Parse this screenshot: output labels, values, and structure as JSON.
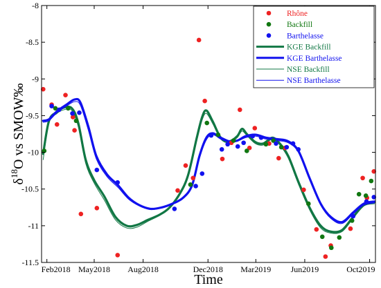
{
  "chart_data": {
    "type": "scatter",
    "xlabel": "Time",
    "ylabel_sup": "18",
    "ylabel_pre": "δ",
    "ylabel_post": "O vs SMOW‰",
    "xlim": [
      "2018-01-22",
      "2019-10-12"
    ],
    "ylim": [
      -11.5,
      -8
    ],
    "x_ticks": [
      {
        "date": "2018-02-01",
        "label": "Feb2018"
      },
      {
        "date": "2018-05-01",
        "label": "May2018"
      },
      {
        "date": "2018-08-01",
        "label": "Aug2018"
      },
      {
        "date": "2018-12-01",
        "label": "Dec2018"
      },
      {
        "date": "2019-03-01",
        "label": "Mar2019"
      },
      {
        "date": "2019-06-01",
        "label": "Jun2019"
      },
      {
        "date": "2019-10-01",
        "label": "Oct2019"
      }
    ],
    "y_ticks": [
      {
        "value": -8,
        "label": "-8"
      },
      {
        "value": -8.5,
        "label": "-8.5"
      },
      {
        "value": -9,
        "label": "-9"
      },
      {
        "value": -9.5,
        "label": "-9.5"
      },
      {
        "value": -10,
        "label": "-10"
      },
      {
        "value": -10.5,
        "label": "-10.5"
      },
      {
        "value": -11,
        "label": "-11"
      },
      {
        "value": -11.5,
        "label": "-11.5"
      }
    ],
    "grid": false,
    "legend_position": "top-right",
    "legend": [
      {
        "label": "Rhône",
        "kind": "marker",
        "color": "#ee2222",
        "text_color": "#ee2222"
      },
      {
        "label": "Backfill",
        "kind": "marker",
        "color": "#117711",
        "text_color": "#117711"
      },
      {
        "label": "Barthelasse",
        "kind": "marker",
        "color": "#1111ee",
        "text_color": "#1111ee"
      },
      {
        "label": "KGE Backfill",
        "kind": "line",
        "color": "#117744",
        "width": 3,
        "text_color": "#117744"
      },
      {
        "label": "KGE Barthelasse",
        "kind": "line",
        "color": "#1111ee",
        "width": 3,
        "text_color": "#1111ee"
      },
      {
        "label": "NSE Backfill",
        "kind": "line",
        "color": "#117744",
        "width": 1,
        "text_color": "#117744"
      },
      {
        "label": "NSE Barthelasse",
        "kind": "line",
        "color": "#1111ee",
        "width": 1,
        "text_color": "#1111ee"
      }
    ],
    "scatter_series": [
      {
        "name": "Rhône",
        "color": "#ee2222",
        "points": [
          [
            "2018-01-25",
            -9.14
          ],
          [
            "2018-02-10",
            -9.35
          ],
          [
            "2018-02-20",
            -9.62
          ],
          [
            "2018-03-08",
            -9.22
          ],
          [
            "2018-03-22",
            -9.52
          ],
          [
            "2018-03-25",
            -9.7
          ],
          [
            "2018-04-06",
            -10.84
          ],
          [
            "2018-05-06",
            -10.76
          ],
          [
            "2018-06-14",
            -11.4
          ],
          [
            "2018-10-05",
            -10.52
          ],
          [
            "2018-10-20",
            -10.18
          ],
          [
            "2018-11-03",
            -10.35
          ],
          [
            "2018-11-14",
            -8.47
          ],
          [
            "2018-11-25",
            -9.3
          ],
          [
            "2018-12-28",
            -10.09
          ],
          [
            "2019-01-14",
            -9.87
          ],
          [
            "2019-01-30",
            -9.42
          ],
          [
            "2019-02-17",
            -9.94
          ],
          [
            "2019-02-27",
            -9.67
          ],
          [
            "2019-03-26",
            -9.88
          ],
          [
            "2019-04-13",
            -10.08
          ],
          [
            "2019-04-25",
            -9.94
          ],
          [
            "2019-05-30",
            -10.51
          ],
          [
            "2019-06-23",
            -11.05
          ],
          [
            "2019-07-10",
            -11.42
          ],
          [
            "2019-07-20",
            -11.27
          ],
          [
            "2019-08-26",
            -11.04
          ],
          [
            "2019-09-18",
            -10.35
          ],
          [
            "2019-09-26",
            -10.62
          ],
          [
            "2019-10-09",
            -10.26
          ]
        ]
      },
      {
        "name": "Backfill",
        "color": "#117711",
        "points": [
          [
            "2018-01-27",
            -9.98
          ],
          [
            "2018-02-17",
            -9.4
          ],
          [
            "2018-03-13",
            -9.4
          ],
          [
            "2018-03-28",
            -9.57
          ],
          [
            "2018-10-29",
            -10.44
          ],
          [
            "2018-11-29",
            -9.6
          ],
          [
            "2018-12-20",
            -9.76
          ],
          [
            "2019-01-18",
            -9.84
          ],
          [
            "2019-02-12",
            -9.98
          ],
          [
            "2019-03-20",
            -9.89
          ],
          [
            "2019-04-03",
            -9.84
          ],
          [
            "2019-04-18",
            -9.93
          ],
          [
            "2019-06-08",
            -10.7
          ],
          [
            "2019-07-04",
            -11.15
          ],
          [
            "2019-07-21",
            -11.3
          ],
          [
            "2019-08-05",
            -11.16
          ],
          [
            "2019-08-29",
            -10.93
          ],
          [
            "2019-09-11",
            -10.57
          ],
          [
            "2019-09-24",
            -10.59
          ],
          [
            "2019-10-04",
            -10.39
          ]
        ]
      },
      {
        "name": "Barthelasse",
        "color": "#1111ee",
        "points": [
          [
            "2018-02-10",
            -9.37
          ],
          [
            "2018-02-24",
            -9.42
          ],
          [
            "2018-03-21",
            -9.47
          ],
          [
            "2018-04-03",
            -9.46
          ],
          [
            "2018-05-06",
            -10.24
          ],
          [
            "2018-06-14",
            -10.41
          ],
          [
            "2018-09-29",
            -10.77
          ],
          [
            "2018-11-08",
            -10.46
          ],
          [
            "2018-11-20",
            -10.29
          ],
          [
            "2018-12-07",
            -9.77
          ],
          [
            "2018-12-27",
            -9.96
          ],
          [
            "2019-01-07",
            -9.89
          ],
          [
            "2019-01-26",
            -9.92
          ],
          [
            "2019-02-06",
            -9.87
          ],
          [
            "2019-02-23",
            -9.78
          ],
          [
            "2019-03-11",
            -9.8
          ],
          [
            "2019-04-08",
            -9.88
          ],
          [
            "2019-04-28",
            -9.93
          ],
          [
            "2019-05-10",
            -9.88
          ],
          [
            "2019-05-20",
            -9.96
          ],
          [
            "2019-08-31",
            -10.87
          ],
          [
            "2019-09-25",
            -10.67
          ],
          [
            "2019-10-09",
            -10.61
          ]
        ]
      }
    ],
    "line_series": [
      {
        "name": "KGE Backfill",
        "color": "#117744",
        "width": 3.2,
        "points": [
          [
            "2018-01-25",
            -10.02
          ],
          [
            "2018-02-05",
            -9.57
          ],
          [
            "2018-02-20",
            -9.45
          ],
          [
            "2018-03-05",
            -9.39
          ],
          [
            "2018-03-20",
            -9.4
          ],
          [
            "2018-04-01",
            -9.6
          ],
          [
            "2018-04-15",
            -10.1
          ],
          [
            "2018-05-01",
            -10.38
          ],
          [
            "2018-05-20",
            -10.6
          ],
          [
            "2018-06-10",
            -10.88
          ],
          [
            "2018-07-01",
            -11.0
          ],
          [
            "2018-07-20",
            -10.99
          ],
          [
            "2018-08-10",
            -10.92
          ],
          [
            "2018-09-01",
            -10.85
          ],
          [
            "2018-09-20",
            -10.75
          ],
          [
            "2018-10-10",
            -10.55
          ],
          [
            "2018-10-25",
            -10.3
          ],
          [
            "2018-11-10",
            -9.8
          ],
          [
            "2018-11-20",
            -9.52
          ],
          [
            "2018-11-28",
            -9.43
          ],
          [
            "2018-12-10",
            -9.58
          ],
          [
            "2018-12-25",
            -9.8
          ],
          [
            "2019-01-10",
            -9.85
          ],
          [
            "2019-01-25",
            -9.78
          ],
          [
            "2019-02-03",
            -9.68
          ],
          [
            "2019-02-12",
            -9.75
          ],
          [
            "2019-02-28",
            -9.86
          ],
          [
            "2019-03-15",
            -9.88
          ],
          [
            "2019-04-01",
            -9.8
          ],
          [
            "2019-04-15",
            -9.88
          ],
          [
            "2019-05-01",
            -10.05
          ],
          [
            "2019-05-20",
            -10.4
          ],
          [
            "2019-06-10",
            -10.75
          ],
          [
            "2019-07-01",
            -11.0
          ],
          [
            "2019-07-20",
            -11.08
          ],
          [
            "2019-08-10",
            -11.06
          ],
          [
            "2019-08-31",
            -10.88
          ],
          [
            "2019-09-20",
            -10.72
          ],
          [
            "2019-10-10",
            -10.68
          ]
        ]
      },
      {
        "name": "NSE Backfill",
        "color": "#117744",
        "width": 1,
        "points": [
          [
            "2018-01-25",
            -10.1
          ],
          [
            "2018-02-05",
            -9.6
          ],
          [
            "2018-02-20",
            -9.47
          ],
          [
            "2018-03-05",
            -9.42
          ],
          [
            "2018-03-20",
            -9.43
          ],
          [
            "2018-04-01",
            -9.65
          ],
          [
            "2018-04-15",
            -10.15
          ],
          [
            "2018-05-01",
            -10.42
          ],
          [
            "2018-05-20",
            -10.65
          ],
          [
            "2018-06-10",
            -10.92
          ],
          [
            "2018-07-01",
            -11.03
          ],
          [
            "2018-07-20",
            -11.02
          ],
          [
            "2018-08-10",
            -10.94
          ],
          [
            "2018-09-01",
            -10.86
          ],
          [
            "2018-09-20",
            -10.76
          ],
          [
            "2018-10-10",
            -10.57
          ],
          [
            "2018-10-25",
            -10.33
          ],
          [
            "2018-11-10",
            -9.84
          ],
          [
            "2018-11-20",
            -9.56
          ],
          [
            "2018-11-28",
            -9.47
          ],
          [
            "2018-12-10",
            -9.61
          ],
          [
            "2018-12-25",
            -9.82
          ],
          [
            "2019-01-10",
            -9.87
          ],
          [
            "2019-01-25",
            -9.8
          ],
          [
            "2019-02-03",
            -9.71
          ],
          [
            "2019-02-12",
            -9.77
          ],
          [
            "2019-02-28",
            -9.88
          ],
          [
            "2019-03-15",
            -9.9
          ],
          [
            "2019-04-01",
            -9.82
          ],
          [
            "2019-04-15",
            -9.9
          ],
          [
            "2019-05-01",
            -10.08
          ],
          [
            "2019-05-20",
            -10.43
          ],
          [
            "2019-06-10",
            -10.78
          ],
          [
            "2019-07-01",
            -11.03
          ],
          [
            "2019-07-20",
            -11.1
          ],
          [
            "2019-08-10",
            -11.08
          ],
          [
            "2019-08-31",
            -10.9
          ],
          [
            "2019-09-20",
            -10.73
          ],
          [
            "2019-10-10",
            -10.7
          ]
        ]
      },
      {
        "name": "KGE Barthelasse",
        "color": "#1111ee",
        "width": 3.2,
        "points": [
          [
            "2018-01-25",
            -9.57
          ],
          [
            "2018-02-05",
            -9.55
          ],
          [
            "2018-02-20",
            -9.44
          ],
          [
            "2018-03-10",
            -9.35
          ],
          [
            "2018-03-25",
            -9.28
          ],
          [
            "2018-04-05",
            -9.32
          ],
          [
            "2018-04-20",
            -9.65
          ],
          [
            "2018-05-05",
            -10.05
          ],
          [
            "2018-05-25",
            -10.3
          ],
          [
            "2018-06-15",
            -10.45
          ],
          [
            "2018-07-05",
            -10.62
          ],
          [
            "2018-07-25",
            -10.72
          ],
          [
            "2018-08-15",
            -10.77
          ],
          [
            "2018-09-05",
            -10.75
          ],
          [
            "2018-09-25",
            -10.7
          ],
          [
            "2018-10-15",
            -10.62
          ],
          [
            "2018-11-01",
            -10.45
          ],
          [
            "2018-11-15",
            -10.05
          ],
          [
            "2018-11-28",
            -9.8
          ],
          [
            "2018-12-10",
            -9.74
          ],
          [
            "2018-12-25",
            -9.8
          ],
          [
            "2019-01-10",
            -9.85
          ],
          [
            "2019-01-25",
            -9.84
          ],
          [
            "2019-02-10",
            -9.78
          ],
          [
            "2019-03-01",
            -9.76
          ],
          [
            "2019-03-20",
            -9.8
          ],
          [
            "2019-04-10",
            -9.82
          ],
          [
            "2019-05-01",
            -9.85
          ],
          [
            "2019-05-20",
            -9.98
          ],
          [
            "2019-06-10",
            -10.35
          ],
          [
            "2019-07-01",
            -10.7
          ],
          [
            "2019-07-20",
            -10.88
          ],
          [
            "2019-08-10",
            -10.95
          ],
          [
            "2019-08-31",
            -10.82
          ],
          [
            "2019-09-20",
            -10.7
          ],
          [
            "2019-10-10",
            -10.67
          ]
        ]
      },
      {
        "name": "NSE Barthelasse",
        "color": "#1111ee",
        "width": 1,
        "points": [
          [
            "2018-01-25",
            -9.59
          ],
          [
            "2018-02-05",
            -9.57
          ],
          [
            "2018-02-20",
            -9.46
          ],
          [
            "2018-03-10",
            -9.37
          ],
          [
            "2018-03-25",
            -9.31
          ],
          [
            "2018-04-05",
            -9.36
          ],
          [
            "2018-04-20",
            -9.7
          ],
          [
            "2018-05-05",
            -10.09
          ],
          [
            "2018-05-25",
            -10.33
          ],
          [
            "2018-06-15",
            -10.48
          ],
          [
            "2018-07-05",
            -10.64
          ],
          [
            "2018-07-25",
            -10.73
          ],
          [
            "2018-08-15",
            -10.78
          ],
          [
            "2018-09-05",
            -10.76
          ],
          [
            "2018-09-25",
            -10.71
          ],
          [
            "2018-10-15",
            -10.63
          ],
          [
            "2018-11-01",
            -10.47
          ],
          [
            "2018-11-15",
            -10.08
          ],
          [
            "2018-11-28",
            -9.83
          ],
          [
            "2018-12-10",
            -9.76
          ],
          [
            "2018-12-25",
            -9.82
          ],
          [
            "2019-01-10",
            -9.86
          ],
          [
            "2019-01-25",
            -9.85
          ],
          [
            "2019-02-10",
            -9.8
          ],
          [
            "2019-03-01",
            -9.78
          ],
          [
            "2019-03-20",
            -9.82
          ],
          [
            "2019-04-10",
            -9.84
          ],
          [
            "2019-05-01",
            -9.87
          ],
          [
            "2019-05-20",
            -10.0
          ],
          [
            "2019-06-10",
            -10.37
          ],
          [
            "2019-07-01",
            -10.72
          ],
          [
            "2019-07-20",
            -10.9
          ],
          [
            "2019-08-10",
            -10.97
          ],
          [
            "2019-08-31",
            -10.84
          ],
          [
            "2019-09-20",
            -10.72
          ],
          [
            "2019-10-10",
            -10.69
          ]
        ]
      }
    ]
  }
}
